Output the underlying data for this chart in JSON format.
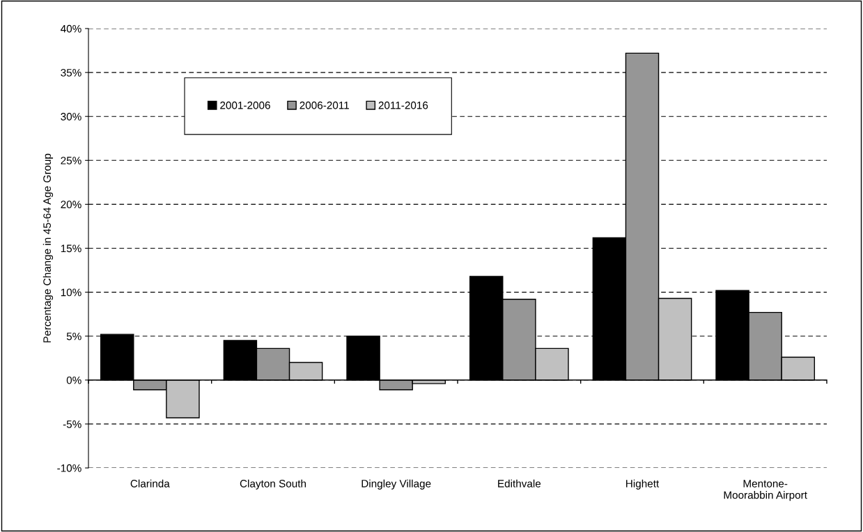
{
  "chart_data": {
    "type": "bar",
    "ylabel": "Percentage Change in 45-64 Age Group",
    "categories": [
      "Clarinda",
      "Clayton South",
      "Dingley Village",
      "Edithvale",
      "Highett",
      "Mentone-\nMoorabbin Airport"
    ],
    "series": [
      {
        "name": "2001-2006",
        "color": "#000000",
        "values": [
          5.2,
          4.5,
          5.0,
          11.8,
          16.2,
          10.2
        ]
      },
      {
        "name": "2006-2011",
        "color": "#969696",
        "values": [
          -1.1,
          3.6,
          -1.1,
          9.2,
          37.2,
          7.7
        ]
      },
      {
        "name": "2011-2016",
        "color": "#c0c0c0",
        "values": [
          -4.3,
          2.0,
          -0.4,
          3.6,
          9.3,
          2.6
        ]
      }
    ],
    "ylim": [
      -10,
      40
    ],
    "yticks": [
      {
        "value": -10,
        "label": "-10%"
      },
      {
        "value": -5,
        "label": "-5%"
      },
      {
        "value": 0,
        "label": "0%"
      },
      {
        "value": 5,
        "label": "5%"
      },
      {
        "value": 10,
        "label": "10%"
      },
      {
        "value": 15,
        "label": "15%"
      },
      {
        "value": 20,
        "label": "20%"
      },
      {
        "value": 25,
        "label": "25%"
      },
      {
        "value": 30,
        "label": "30%"
      },
      {
        "value": 35,
        "label": "35%"
      },
      {
        "value": 40,
        "label": "40%"
      }
    ],
    "grid": "y",
    "legend": "top left"
  }
}
